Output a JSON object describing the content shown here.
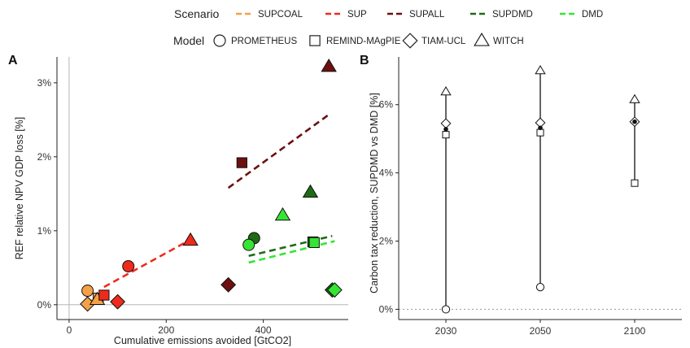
{
  "legend": {
    "scenario_title": "Scenario",
    "model_title": "Model",
    "scenarios": [
      {
        "name": "SUPCOAL",
        "color": "#f4a048"
      },
      {
        "name": "SUP",
        "color": "#ef2a1c"
      },
      {
        "name": "SUPALL",
        "color": "#6e0f0f"
      },
      {
        "name": "SUPDMD",
        "color": "#1f6b15"
      },
      {
        "name": "DMD",
        "color": "#34e534"
      }
    ],
    "models": [
      {
        "name": "PROMETHEUS",
        "shape": "circle"
      },
      {
        "name": "REMIND-MAgPIE",
        "shape": "square"
      },
      {
        "name": "TIAM-UCL",
        "shape": "diamond"
      },
      {
        "name": "WITCH",
        "shape": "triangle"
      }
    ]
  },
  "chart_data": [
    {
      "panel": "A",
      "type": "scatter",
      "xlabel": "Cumulative emissions avoided [GtCO2]",
      "ylabel": "REF relative NPV GDP loss [%]",
      "xlim": [
        -25,
        575
      ],
      "ylim": [
        -0.2,
        3.35
      ],
      "xticks": [
        0,
        200,
        400
      ],
      "xtick_labels": [
        "0",
        "200",
        "400"
      ],
      "yticks": [
        0,
        1,
        2,
        3
      ],
      "ytick_labels": [
        "0%",
        "1%",
        "2%",
        "3%"
      ],
      "grid": false,
      "points": [
        {
          "scenario": "SUPCOAL",
          "model": "PROMETHEUS",
          "x": 38,
          "y": 0.19
        },
        {
          "scenario": "SUPCOAL",
          "model": "REMIND-MAgPIE",
          "x": 60,
          "y": 0.09
        },
        {
          "scenario": "SUPCOAL",
          "model": "TIAM-UCL",
          "x": 38,
          "y": 0.01
        },
        {
          "scenario": "SUPCOAL",
          "model": "WITCH",
          "x": 58,
          "y": 0.07
        },
        {
          "scenario": "SUP",
          "model": "PROMETHEUS",
          "x": 122,
          "y": 0.52
        },
        {
          "scenario": "SUP",
          "model": "REMIND-MAgPIE",
          "x": 72,
          "y": 0.13
        },
        {
          "scenario": "SUP",
          "model": "TIAM-UCL",
          "x": 100,
          "y": 0.04
        },
        {
          "scenario": "SUP",
          "model": "WITCH",
          "x": 250,
          "y": 0.87
        },
        {
          "scenario": "SUPALL",
          "model": "REMIND-MAgPIE",
          "x": 356,
          "y": 1.92
        },
        {
          "scenario": "SUPALL",
          "model": "TIAM-UCL",
          "x": 328,
          "y": 0.27
        },
        {
          "scenario": "SUPALL",
          "model": "WITCH",
          "x": 535,
          "y": 3.22
        },
        {
          "scenario": "SUPDMD",
          "model": "PROMETHEUS",
          "x": 381,
          "y": 0.9
        },
        {
          "scenario": "SUPDMD",
          "model": "REMIND-MAgPIE",
          "x": 502,
          "y": 0.85
        },
        {
          "scenario": "SUPDMD",
          "model": "TIAM-UCL",
          "x": 542,
          "y": 0.2
        },
        {
          "scenario": "SUPDMD",
          "model": "WITCH",
          "x": 497,
          "y": 1.52
        },
        {
          "scenario": "DMD",
          "model": "PROMETHEUS",
          "x": 370,
          "y": 0.81
        },
        {
          "scenario": "DMD",
          "model": "REMIND-MAgPIE",
          "x": 505,
          "y": 0.84
        },
        {
          "scenario": "DMD",
          "model": "TIAM-UCL",
          "x": 547,
          "y": 0.2
        },
        {
          "scenario": "DMD",
          "model": "WITCH",
          "x": 440,
          "y": 1.21
        }
      ],
      "fit_lines": [
        {
          "scenario": "SUPCOAL",
          "x": [
            38,
            60
          ],
          "y": [
            0.02,
            0.12
          ]
        },
        {
          "scenario": "SUP",
          "x": [
            72,
            250
          ],
          "y": [
            0.24,
            0.88
          ]
        },
        {
          "scenario": "SUPALL",
          "x": [
            328,
            535
          ],
          "y": [
            1.58,
            2.57
          ]
        },
        {
          "scenario": "SUPDMD",
          "x": [
            370,
            542
          ],
          "y": [
            0.66,
            0.93
          ]
        },
        {
          "scenario": "DMD",
          "x": [
            370,
            547
          ],
          "y": [
            0.57,
            0.86
          ]
        }
      ]
    },
    {
      "panel": "B",
      "type": "range_dot",
      "xlabel": "",
      "ylabel": "Carbon tax reduction, SUPDMD vs DMD [%]",
      "ylim": [
        -0.3,
        7.4
      ],
      "yticks": [
        0,
        2,
        4,
        6
      ],
      "ytick_labels": [
        "0%",
        "2%",
        "4%",
        "6%"
      ],
      "categories": [
        "2030",
        "2050",
        "2100"
      ],
      "zero_line": "dotted",
      "groups": [
        {
          "year": "2030",
          "mean": 5.28,
          "values": [
            {
              "model": "PROMETHEUS",
              "value": 0.0
            },
            {
              "model": "REMIND-MAgPIE",
              "value": 5.12
            },
            {
              "model": "TIAM-UCL",
              "value": 5.45
            },
            {
              "model": "WITCH",
              "value": 6.38
            }
          ]
        },
        {
          "year": "2050",
          "mean": 5.32,
          "values": [
            {
              "model": "PROMETHEUS",
              "value": 0.65
            },
            {
              "model": "REMIND-MAgPIE",
              "value": 5.18
            },
            {
              "model": "TIAM-UCL",
              "value": 5.47
            },
            {
              "model": "WITCH",
              "value": 7.0
            }
          ]
        },
        {
          "year": "2100",
          "mean": 5.5,
          "values": [
            {
              "model": "REMIND-MAgPIE",
              "value": 3.7
            },
            {
              "model": "TIAM-UCL",
              "value": 5.5
            },
            {
              "model": "WITCH",
              "value": 6.15
            }
          ]
        }
      ]
    }
  ]
}
